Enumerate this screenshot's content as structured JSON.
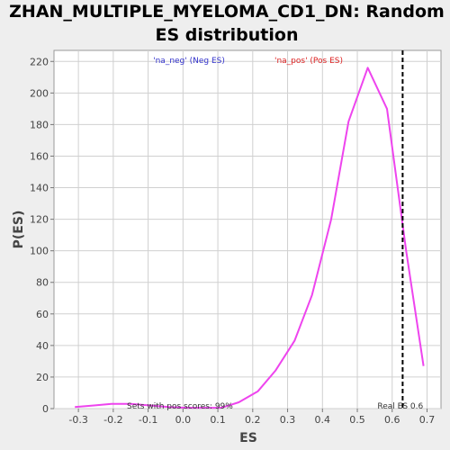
{
  "chart_data": {
    "type": "line",
    "title_line1": "ZHAN_MULTIPLE_MYELOMA_CD1_DN: Random",
    "title_line2": "ES distribution",
    "xlabel": "ES",
    "ylabel": "P(ES)",
    "xlim": [
      -0.37,
      0.74
    ],
    "ylim": [
      0,
      227
    ],
    "xticks": [
      -0.3,
      -0.2,
      -0.1,
      0.0,
      0.1,
      0.2,
      0.3,
      0.4,
      0.5,
      0.6,
      0.7
    ],
    "xtick_labels": [
      "-0.3",
      "-0.2",
      "-0.1",
      "0.0",
      "0.1",
      "0.2",
      "0.3",
      "0.4",
      "0.5",
      "0.6",
      "0.7"
    ],
    "yticks": [
      0,
      20,
      40,
      60,
      80,
      100,
      120,
      140,
      160,
      180,
      200,
      220
    ],
    "ytick_labels": [
      "0",
      "20",
      "40",
      "60",
      "80",
      "100",
      "120",
      "140",
      "160",
      "180",
      "200",
      "220"
    ],
    "grid": true,
    "legend": [
      {
        "label": "'na_neg' (Neg ES)",
        "color": "#3333cc"
      },
      {
        "label": "'na_pos' (Pos ES)",
        "color": "#dd2222"
      }
    ],
    "series": [
      {
        "color": "#ee44ee",
        "x": [
          -0.31,
          -0.255,
          -0.205,
          -0.15,
          -0.095,
          -0.04,
          0.01,
          0.06,
          0.11,
          0.16,
          0.215,
          0.265,
          0.32,
          0.37,
          0.425,
          0.475,
          0.53,
          0.585,
          0.64,
          0.69
        ],
        "y": [
          1,
          2,
          3,
          3,
          2,
          1,
          0.5,
          0.5,
          0.5,
          4,
          11,
          24,
          43,
          72,
          120,
          182,
          216,
          190,
          100,
          27
        ]
      }
    ],
    "real_es": 0.63,
    "real_es_label": "Real ES 0.6",
    "annotation": "Sets with pos scores: 99%"
  }
}
